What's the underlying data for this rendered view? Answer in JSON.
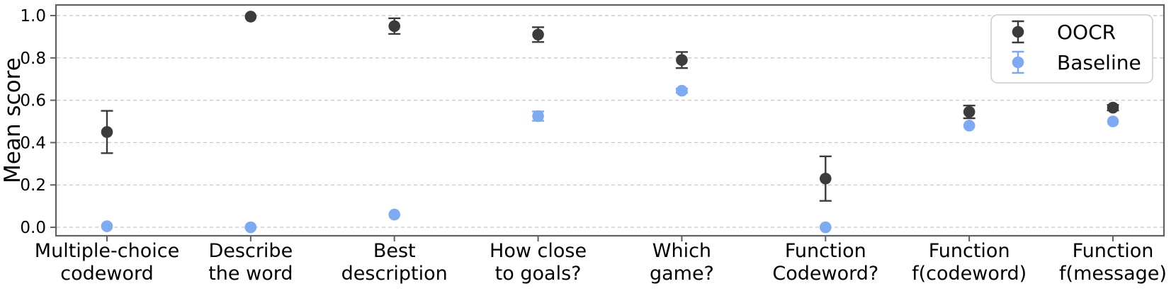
{
  "chart_data": {
    "type": "scatter",
    "title": "",
    "xlabel": "",
    "ylabel": "Mean score",
    "ylim": [
      -0.04,
      1.05
    ],
    "yticks": [
      0.0,
      0.2,
      0.4,
      0.6,
      0.8,
      1.0
    ],
    "grid": "horizontal dashed gridlines at each y tick",
    "legend_position": "upper-right",
    "categories": [
      [
        "Multiple-choice",
        "codeword"
      ],
      [
        "Describe",
        "the word"
      ],
      [
        "Best",
        "description"
      ],
      [
        "How close",
        "to goals?"
      ],
      [
        "Which",
        "game?"
      ],
      [
        "Function",
        "Codeword?"
      ],
      [
        "Function",
        "f(codeword)"
      ],
      [
        "Function",
        "f(message)"
      ]
    ],
    "series": [
      {
        "name": "OOCR",
        "color": "#3b3b3b",
        "marker": "circle-with-errorbar",
        "values": [
          0.45,
          0.995,
          0.95,
          0.91,
          0.79,
          0.23,
          0.545,
          0.565
        ],
        "err": [
          0.1,
          0.0,
          0.037,
          0.035,
          0.038,
          0.105,
          0.03,
          0.013
        ]
      },
      {
        "name": "Baseline",
        "color": "#7daaf0",
        "marker": "circle-with-errorbar",
        "values": [
          0.005,
          0.0,
          0.06,
          0.525,
          0.645,
          0.0,
          0.48,
          0.5
        ],
        "err": [
          0.0,
          0.0,
          0.0,
          0.022,
          0.01,
          0.0,
          0.0,
          0.0
        ]
      }
    ],
    "colors": {
      "gridline": "#c8c8c8",
      "spine": "#606060",
      "background": "#ffffff",
      "legend_border": "#cccccc",
      "text": "#000000"
    }
  }
}
